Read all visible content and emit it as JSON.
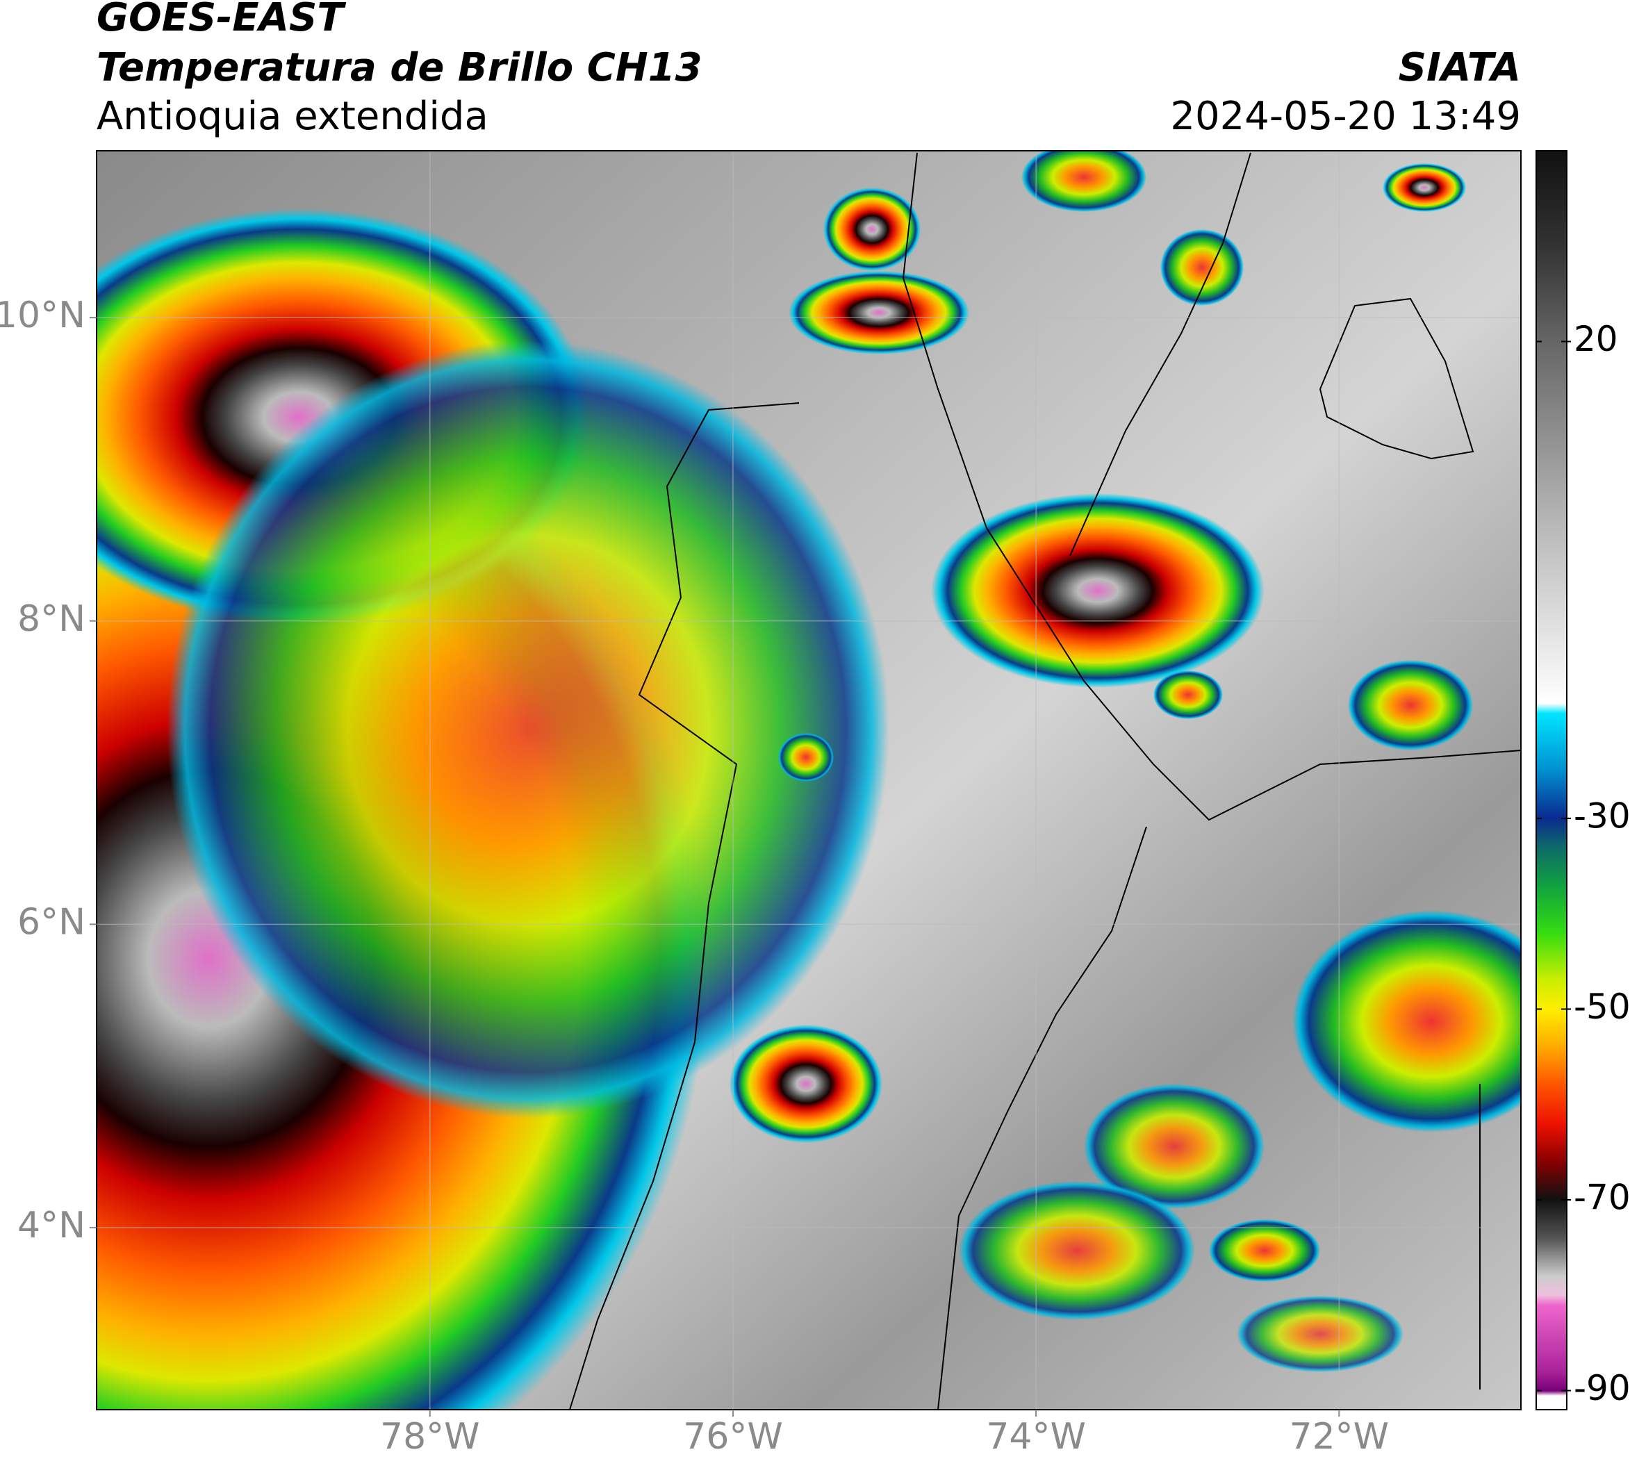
{
  "header": {
    "title": "GOES-EAST",
    "subtitle": "Temperatura de Brillo CH13",
    "region": "Antioquia extendida",
    "source": "SIATA",
    "datetime": "2024-05-20 13:49"
  },
  "map": {
    "xlim": [
      -80.2,
      -70.8
    ],
    "ylim": [
      2.8,
      11.1
    ],
    "xticks": [
      {
        "value": -78,
        "label": "78°W"
      },
      {
        "value": -76,
        "label": "76°W"
      },
      {
        "value": -74,
        "label": "74°W"
      },
      {
        "value": -72,
        "label": "72°W"
      }
    ],
    "yticks": [
      {
        "value": 4,
        "label": "4°N"
      },
      {
        "value": 6,
        "label": "6°N"
      },
      {
        "value": 8,
        "label": "8°N"
      },
      {
        "value": 10,
        "label": "10°N"
      }
    ],
    "grid": true
  },
  "colorbar": {
    "lim": [
      -92,
      40
    ],
    "ticks": [
      -90,
      -70,
      -50,
      -30,
      20
    ]
  }
}
